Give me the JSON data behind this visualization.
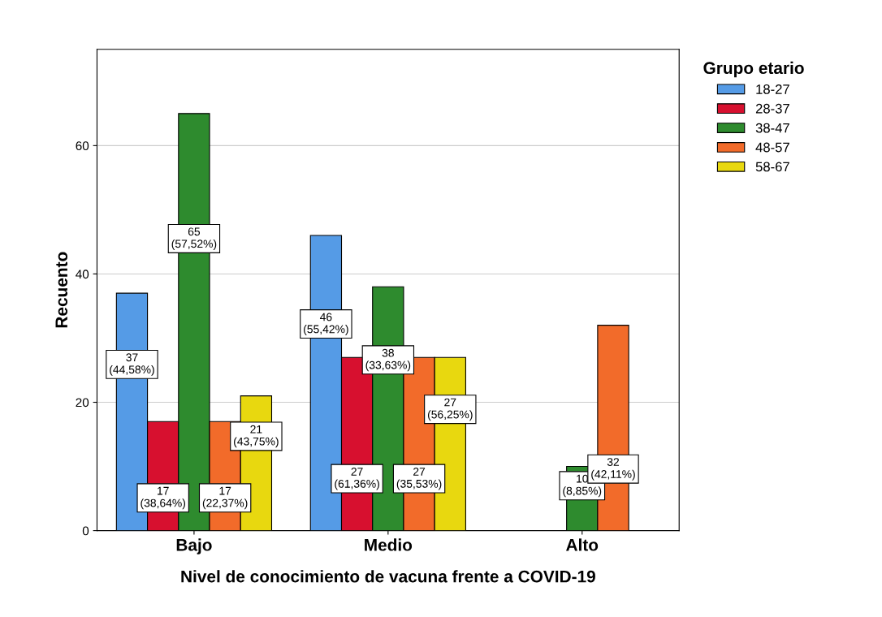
{
  "chart_data": {
    "type": "bar",
    "xlabel": "Nivel de conocimiento de vacuna frente a COVID-19",
    "ylabel": "Recuento",
    "legend_title": "Grupo etario",
    "legend": "top right",
    "categories": [
      "Bajo",
      "Medio",
      "Alto"
    ],
    "series": [
      {
        "name": "18-27",
        "color": "#559be6",
        "values": [
          37,
          46,
          null
        ],
        "value_labels": [
          "37\n(44,58%)",
          "46\n(55,42%)",
          null
        ]
      },
      {
        "name": "28-37",
        "color": "#d7102f",
        "values": [
          17,
          27,
          null
        ],
        "value_labels": [
          "17\n(38,64%)",
          "27\n(61,36%)",
          null
        ]
      },
      {
        "name": "38-47",
        "color": "#2e8b2e",
        "values": [
          65,
          38,
          10
        ],
        "value_labels": [
          "65\n(57,52%)",
          "38\n(33,63%)",
          "10\n(8,85%)"
        ]
      },
      {
        "name": "48-57",
        "color": "#f26b2a",
        "values": [
          17,
          27,
          32
        ],
        "value_labels": [
          "17\n(22,37%)",
          "27\n(35,53%)",
          "32\n(42,11%)"
        ]
      },
      {
        "name": "58-67",
        "color": "#e8d80f",
        "values": [
          21,
          27,
          null
        ],
        "value_labels": [
          "21\n(43,75%)",
          "27\n(56,25%)",
          null
        ]
      }
    ],
    "ylim": [
      0,
      75
    ],
    "yticks": [
      0,
      20,
      40,
      60
    ],
    "grid": "y"
  }
}
